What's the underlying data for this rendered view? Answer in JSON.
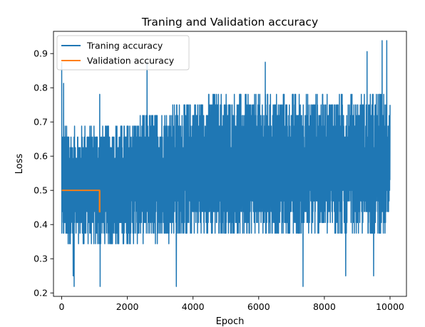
{
  "chart_data": {
    "type": "line",
    "title": "Traning and Validation accuracy",
    "xlabel": "Epoch",
    "ylabel": "Loss",
    "xlim": [
      -250,
      10500
    ],
    "ylim": [
      0.19,
      0.965
    ],
    "xticks": [
      0,
      2000,
      4000,
      6000,
      8000,
      10000
    ],
    "yticks": [
      0.2,
      0.3,
      0.4,
      0.5,
      0.6,
      0.7,
      0.8,
      0.9
    ],
    "grid": false,
    "legend_placement": "upper-left",
    "series": [
      {
        "name": "Traning accuracy",
        "color": "#1f77b4",
        "x_range": [
          0,
          10000
        ],
        "level_values": [
          0.219,
          0.25,
          0.281,
          0.312,
          0.344,
          0.375,
          0.406,
          0.438,
          0.469,
          0.5,
          0.531,
          0.562,
          0.594,
          0.625,
          0.656,
          0.688,
          0.719,
          0.75,
          0.781,
          0.812,
          0.844,
          0.875,
          0.906,
          0.938
        ],
        "typical_band_early": [
          0.34,
          0.69
        ],
        "typical_band_late": [
          0.37,
          0.78
        ],
        "peaks": [
          [
            0,
            0.875
          ],
          [
            60,
            0.813
          ],
          [
            1160,
            0.781
          ],
          [
            2600,
            0.875
          ],
          [
            6200,
            0.875
          ],
          [
            9300,
            0.906
          ],
          [
            9760,
            0.938
          ],
          [
            9900,
            0.938
          ]
        ],
        "troughs": [
          [
            350,
            0.25
          ],
          [
            380,
            0.219
          ],
          [
            1170,
            0.219
          ],
          [
            3490,
            0.219
          ],
          [
            7350,
            0.219
          ],
          [
            8650,
            0.25
          ],
          [
            9500,
            0.25
          ]
        ]
      },
      {
        "name": "Validation accuracy",
        "color": "#ff7f0e",
        "x": [
          0,
          1150,
          1150,
          1160,
          1160,
          1170
        ],
        "y": [
          0.5,
          0.5,
          0.4375,
          0.4375,
          0.5,
          0.5
        ]
      }
    ]
  }
}
